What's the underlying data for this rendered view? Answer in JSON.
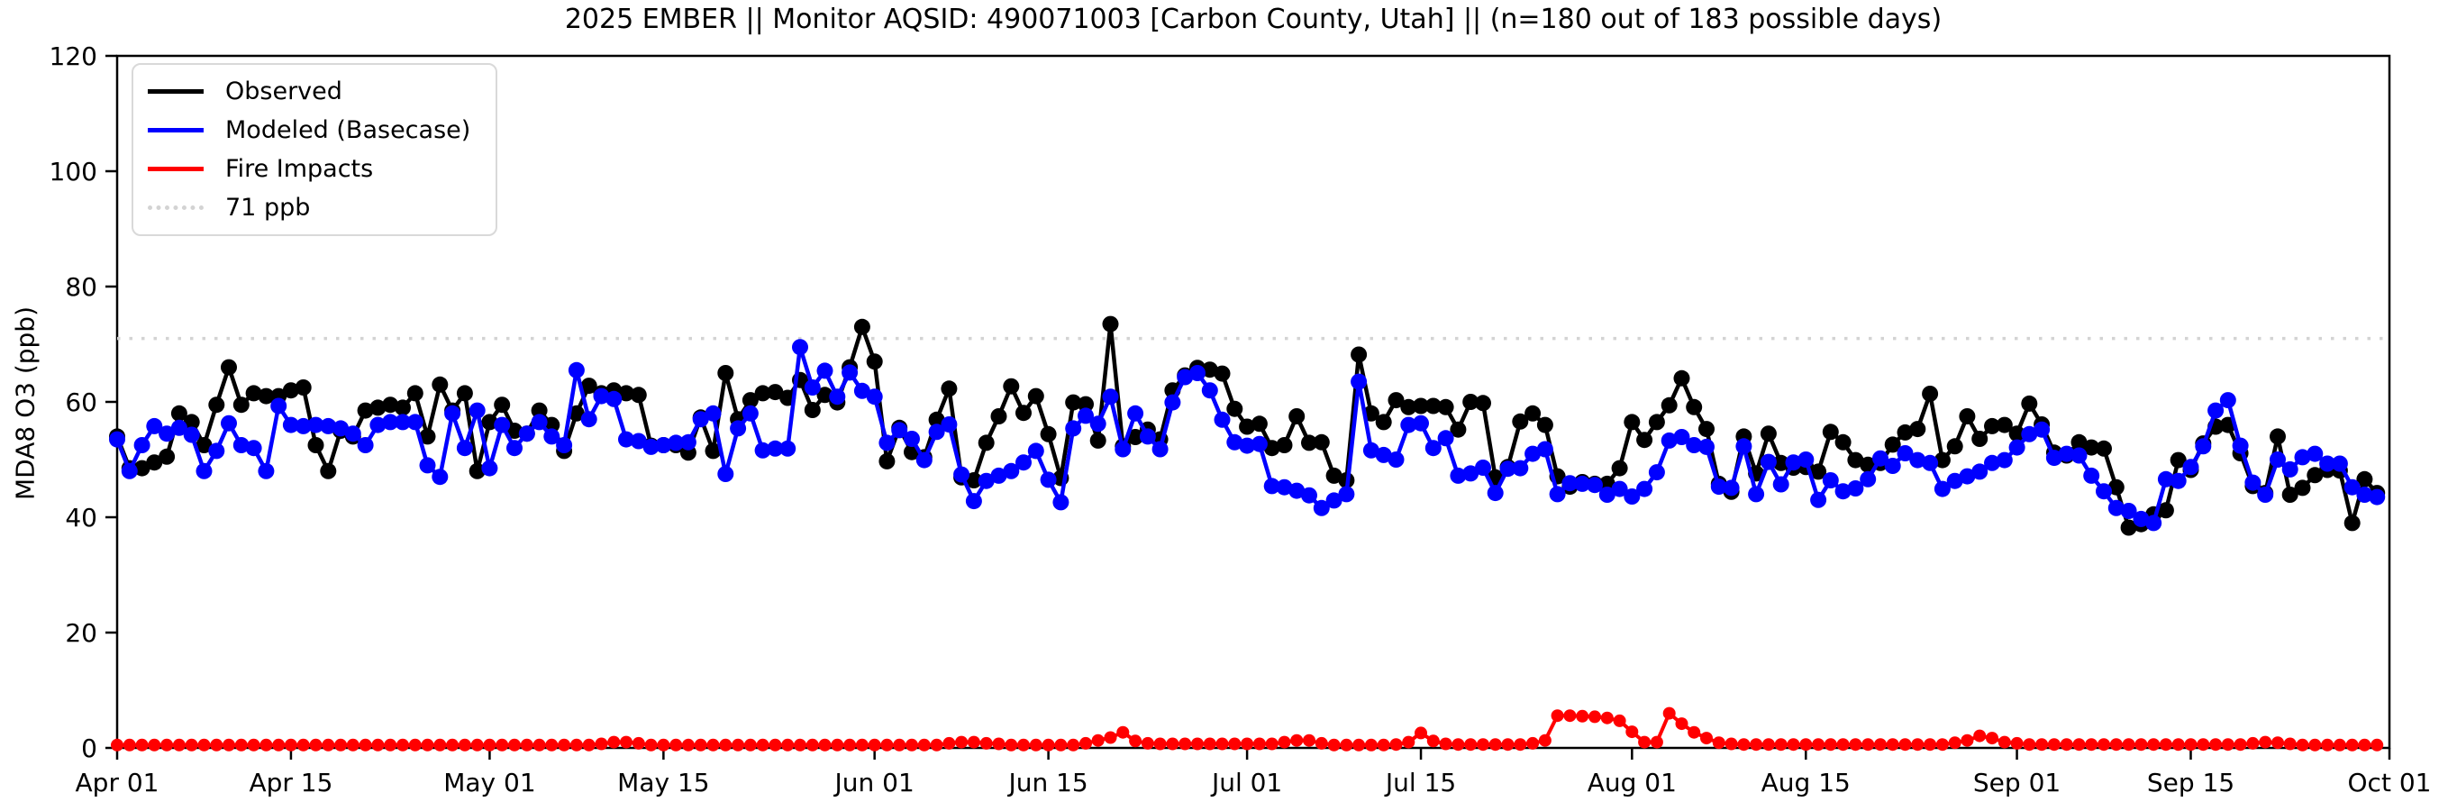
{
  "chart_data": {
    "type": "line",
    "title": "2025 EMBER || Monitor AQSID: 490071003 [Carbon County, Utah] || (n=180 out of 183 possible days)",
    "ylabel": "MDA8 O3 (ppb)",
    "xlabel": "",
    "ylim": [
      0,
      120
    ],
    "x_unit": "one point per day, Apr 01 2025 = index 0",
    "n_days": 183,
    "grid": false,
    "legend_position": "upper left",
    "threshold": {
      "label": "71 ppb",
      "value": 71,
      "color": "#d3d3d3",
      "style": "dotted"
    },
    "y_ticks": [
      0,
      20,
      40,
      60,
      80,
      100,
      120
    ],
    "x_ticks": [
      {
        "label": "Apr 01",
        "day": 0
      },
      {
        "label": "Apr 15",
        "day": 14
      },
      {
        "label": "May 01",
        "day": 30
      },
      {
        "label": "May 15",
        "day": 44
      },
      {
        "label": "Jun 01",
        "day": 61
      },
      {
        "label": "Jun 15",
        "day": 75
      },
      {
        "label": "Jul 01",
        "day": 91
      },
      {
        "label": "Jul 15",
        "day": 105
      },
      {
        "label": "Aug 01",
        "day": 122
      },
      {
        "label": "Aug 15",
        "day": 136
      },
      {
        "label": "Sep 01",
        "day": 153
      },
      {
        "label": "Sep 15",
        "day": 167
      },
      {
        "label": "Oct 01",
        "day": 183
      }
    ],
    "series": [
      {
        "name": "Observed",
        "color": "#000000",
        "marker": "circle",
        "values": [
          54,
          48.5,
          48.5,
          49.5,
          50.5,
          58,
          56.5,
          52.5,
          59.5,
          66,
          59.5,
          61.5,
          61,
          61,
          62,
          62.5,
          52.5,
          48,
          55,
          54,
          58.5,
          59,
          59.5,
          59,
          61.5,
          54,
          63,
          58.5,
          61.5,
          48,
          56.5,
          59.5,
          55,
          54.5,
          58.5,
          56,
          51.5,
          58,
          62.8,
          61.5,
          62,
          61.5,
          61.2,
          52.4,
          52.5,
          52.5,
          51.2,
          57.3,
          51.5,
          65,
          57,
          60.3,
          61.5,
          61.7,
          60.7,
          63.8,
          58.6,
          61.2,
          59.9,
          66,
          73,
          67,
          49.7,
          55.5,
          51.3,
          50.4,
          56.9,
          62.3,
          46.9,
          46.4,
          52.9,
          57.5,
          62.7,
          58.1,
          61,
          54.4,
          46.8,
          59.9,
          59.6,
          53.3,
          73.5,
          52.3,
          53.9,
          55.2,
          53.5,
          62,
          64.6,
          65.9,
          65.6,
          64.9,
          58.8,
          55.7,
          56.2,
          52,
          52.5,
          57.5,
          52.9,
          53,
          47.2,
          46.4,
          68.2,
          58,
          56.5,
          60.3,
          59.1,
          59.3,
          59.3,
          59.1,
          55.2,
          60,
          59.8,
          46.9,
          48.7,
          56.6,
          58,
          56,
          47.1,
          45.3,
          46.1,
          45.8,
          45.8,
          48.5,
          56.5,
          53.4,
          56.5,
          59.4,
          64.1,
          59.1,
          55.3,
          45.8,
          44.4,
          54,
          47.6,
          54.5,
          49.4,
          48.6,
          48.7,
          47.9,
          54.8,
          53,
          49.9,
          49.1,
          49.4,
          52.6,
          54.7,
          55.3,
          61.4,
          49.9,
          52.3,
          57.5,
          53.6,
          55.8,
          56,
          54.5,
          59.7,
          56.1,
          51.2,
          50.7,
          53,
          52.1,
          51.9,
          45.2,
          38.2,
          38.8,
          40.5,
          41.2,
          49.9,
          48.2,
          52.8,
          55.7,
          56,
          51.1,
          45.4,
          44.2,
          54,
          43.9,
          45.1,
          47.3,
          48.2,
          48.1,
          39,
          46.6,
          44.2
        ]
      },
      {
        "name": "Modeled (Basecase)",
        "color": "#0000ff",
        "marker": "circle",
        "values": [
          53.5,
          48,
          52.5,
          55.8,
          54.5,
          55.5,
          54.3,
          48,
          51.5,
          56.3,
          52.5,
          52,
          48,
          59.3,
          56,
          55.8,
          56,
          55.8,
          55.4,
          54.5,
          52.5,
          56,
          56.5,
          56.5,
          56.5,
          49,
          47,
          58,
          52,
          58.5,
          48.5,
          56,
          52,
          54.5,
          56.5,
          54,
          52.5,
          65.5,
          57,
          61,
          60.5,
          53.5,
          53.2,
          52.2,
          52.5,
          52.9,
          53,
          57,
          58,
          47.5,
          55.4,
          58,
          51.6,
          51.9,
          51.9,
          69.5,
          62.5,
          65.4,
          60.9,
          65.1,
          61.9,
          60.9,
          52.9,
          55.1,
          53.6,
          49.9,
          54.8,
          56.1,
          47.4,
          42.8,
          46.3,
          47.2,
          48,
          49.5,
          51.5,
          46.5,
          42.6,
          55.4,
          57.6,
          56.2,
          60.9,
          51.8,
          58,
          54,
          51.8,
          59.9,
          64.3,
          65,
          62,
          56.9,
          53,
          52.4,
          52.7,
          45.4,
          45.2,
          44.6,
          43.8,
          41.6,
          42.9,
          44,
          63.5,
          51.6,
          50.8,
          50,
          56,
          56.3,
          52,
          53.7,
          47.2,
          47.6,
          48.6,
          44.2,
          48.4,
          48.5,
          51,
          51.8,
          44,
          45.9,
          45.8,
          45.6,
          43.9,
          44.9,
          43.6,
          44.9,
          47.8,
          53.3,
          53.9,
          52.5,
          52.2,
          45.3,
          45.1,
          52.3,
          44,
          49.6,
          45.7,
          49.5,
          50,
          43,
          46.4,
          44.5,
          45,
          46.6,
          50.2,
          48.9,
          51.1,
          49.9,
          49.4,
          44.9,
          46.3,
          47.1,
          47.9,
          49.4,
          49.9,
          52.1,
          54.4,
          55.2,
          50.3,
          51,
          50.7,
          47.2,
          44.5,
          41.6,
          41.1,
          39.7,
          39,
          46.6,
          46.3,
          48.7,
          52.3,
          58.5,
          60.3,
          52.4,
          46,
          43.9,
          50,
          48.3,
          50.4,
          51,
          49.3,
          49.3,
          45.2,
          43.9,
          43.5
        ]
      },
      {
        "name": "Fire Impacts",
        "color": "#ff0000",
        "marker": "circle",
        "values": [
          0.5,
          0.5,
          0.5,
          0.5,
          0.5,
          0.5,
          0.5,
          0.5,
          0.5,
          0.5,
          0.5,
          0.5,
          0.5,
          0.5,
          0.5,
          0.5,
          0.5,
          0.5,
          0.5,
          0.5,
          0.5,
          0.5,
          0.5,
          0.5,
          0.5,
          0.5,
          0.5,
          0.5,
          0.5,
          0.5,
          0.5,
          0.5,
          0.5,
          0.5,
          0.5,
          0.5,
          0.5,
          0.5,
          0.5,
          0.7,
          1,
          1,
          0.8,
          0.5,
          0.5,
          0.5,
          0.5,
          0.5,
          0.5,
          0.5,
          0.5,
          0.5,
          0.5,
          0.5,
          0.5,
          0.5,
          0.5,
          0.5,
          0.5,
          0.5,
          0.5,
          0.5,
          0.5,
          0.5,
          0.5,
          0.5,
          0.5,
          0.8,
          1,
          1,
          0.8,
          0.7,
          0.5,
          0.5,
          0.5,
          0.5,
          0.5,
          0.5,
          0.8,
          1.3,
          1.8,
          2.7,
          1.2,
          0.8,
          0.7,
          0.7,
          0.7,
          0.7,
          0.7,
          0.7,
          0.7,
          0.7,
          0.7,
          0.7,
          1,
          1.3,
          1.3,
          0.8,
          0.5,
          0.5,
          0.5,
          0.5,
          0.5,
          0.6,
          1,
          2.6,
          1.2,
          0.7,
          0.6,
          0.6,
          0.6,
          0.6,
          0.6,
          0.6,
          0.8,
          1.3,
          5.6,
          5.6,
          5.5,
          5.4,
          5.2,
          4.7,
          2.8,
          1,
          1,
          6,
          4.2,
          2.7,
          1.7,
          0.9,
          0.7,
          0.6,
          0.6,
          0.6,
          0.6,
          0.6,
          0.6,
          0.6,
          0.6,
          0.6,
          0.6,
          0.6,
          0.6,
          0.6,
          0.6,
          0.6,
          0.6,
          0.6,
          0.9,
          1.3,
          2.1,
          1.7,
          1,
          0.8,
          0.6,
          0.6,
          0.6,
          0.6,
          0.6,
          0.6,
          0.6,
          0.6,
          0.6,
          0.6,
          0.6,
          0.6,
          0.6,
          0.6,
          0.6,
          0.6,
          0.6,
          0.6,
          0.8,
          1,
          0.9,
          0.7,
          0.5,
          0.5,
          0.5,
          0.5,
          0.5,
          0.5,
          0.5
        ]
      }
    ]
  },
  "legend": {
    "items": [
      {
        "label": "Observed",
        "color": "#000000",
        "line": "solid"
      },
      {
        "label": "Modeled (Basecase)",
        "color": "#0000ff",
        "line": "solid"
      },
      {
        "label": "Fire Impacts",
        "color": "#ff0000",
        "line": "solid"
      },
      {
        "label": "71 ppb",
        "color": "#d3d3d3",
        "line": "dotted"
      }
    ]
  }
}
